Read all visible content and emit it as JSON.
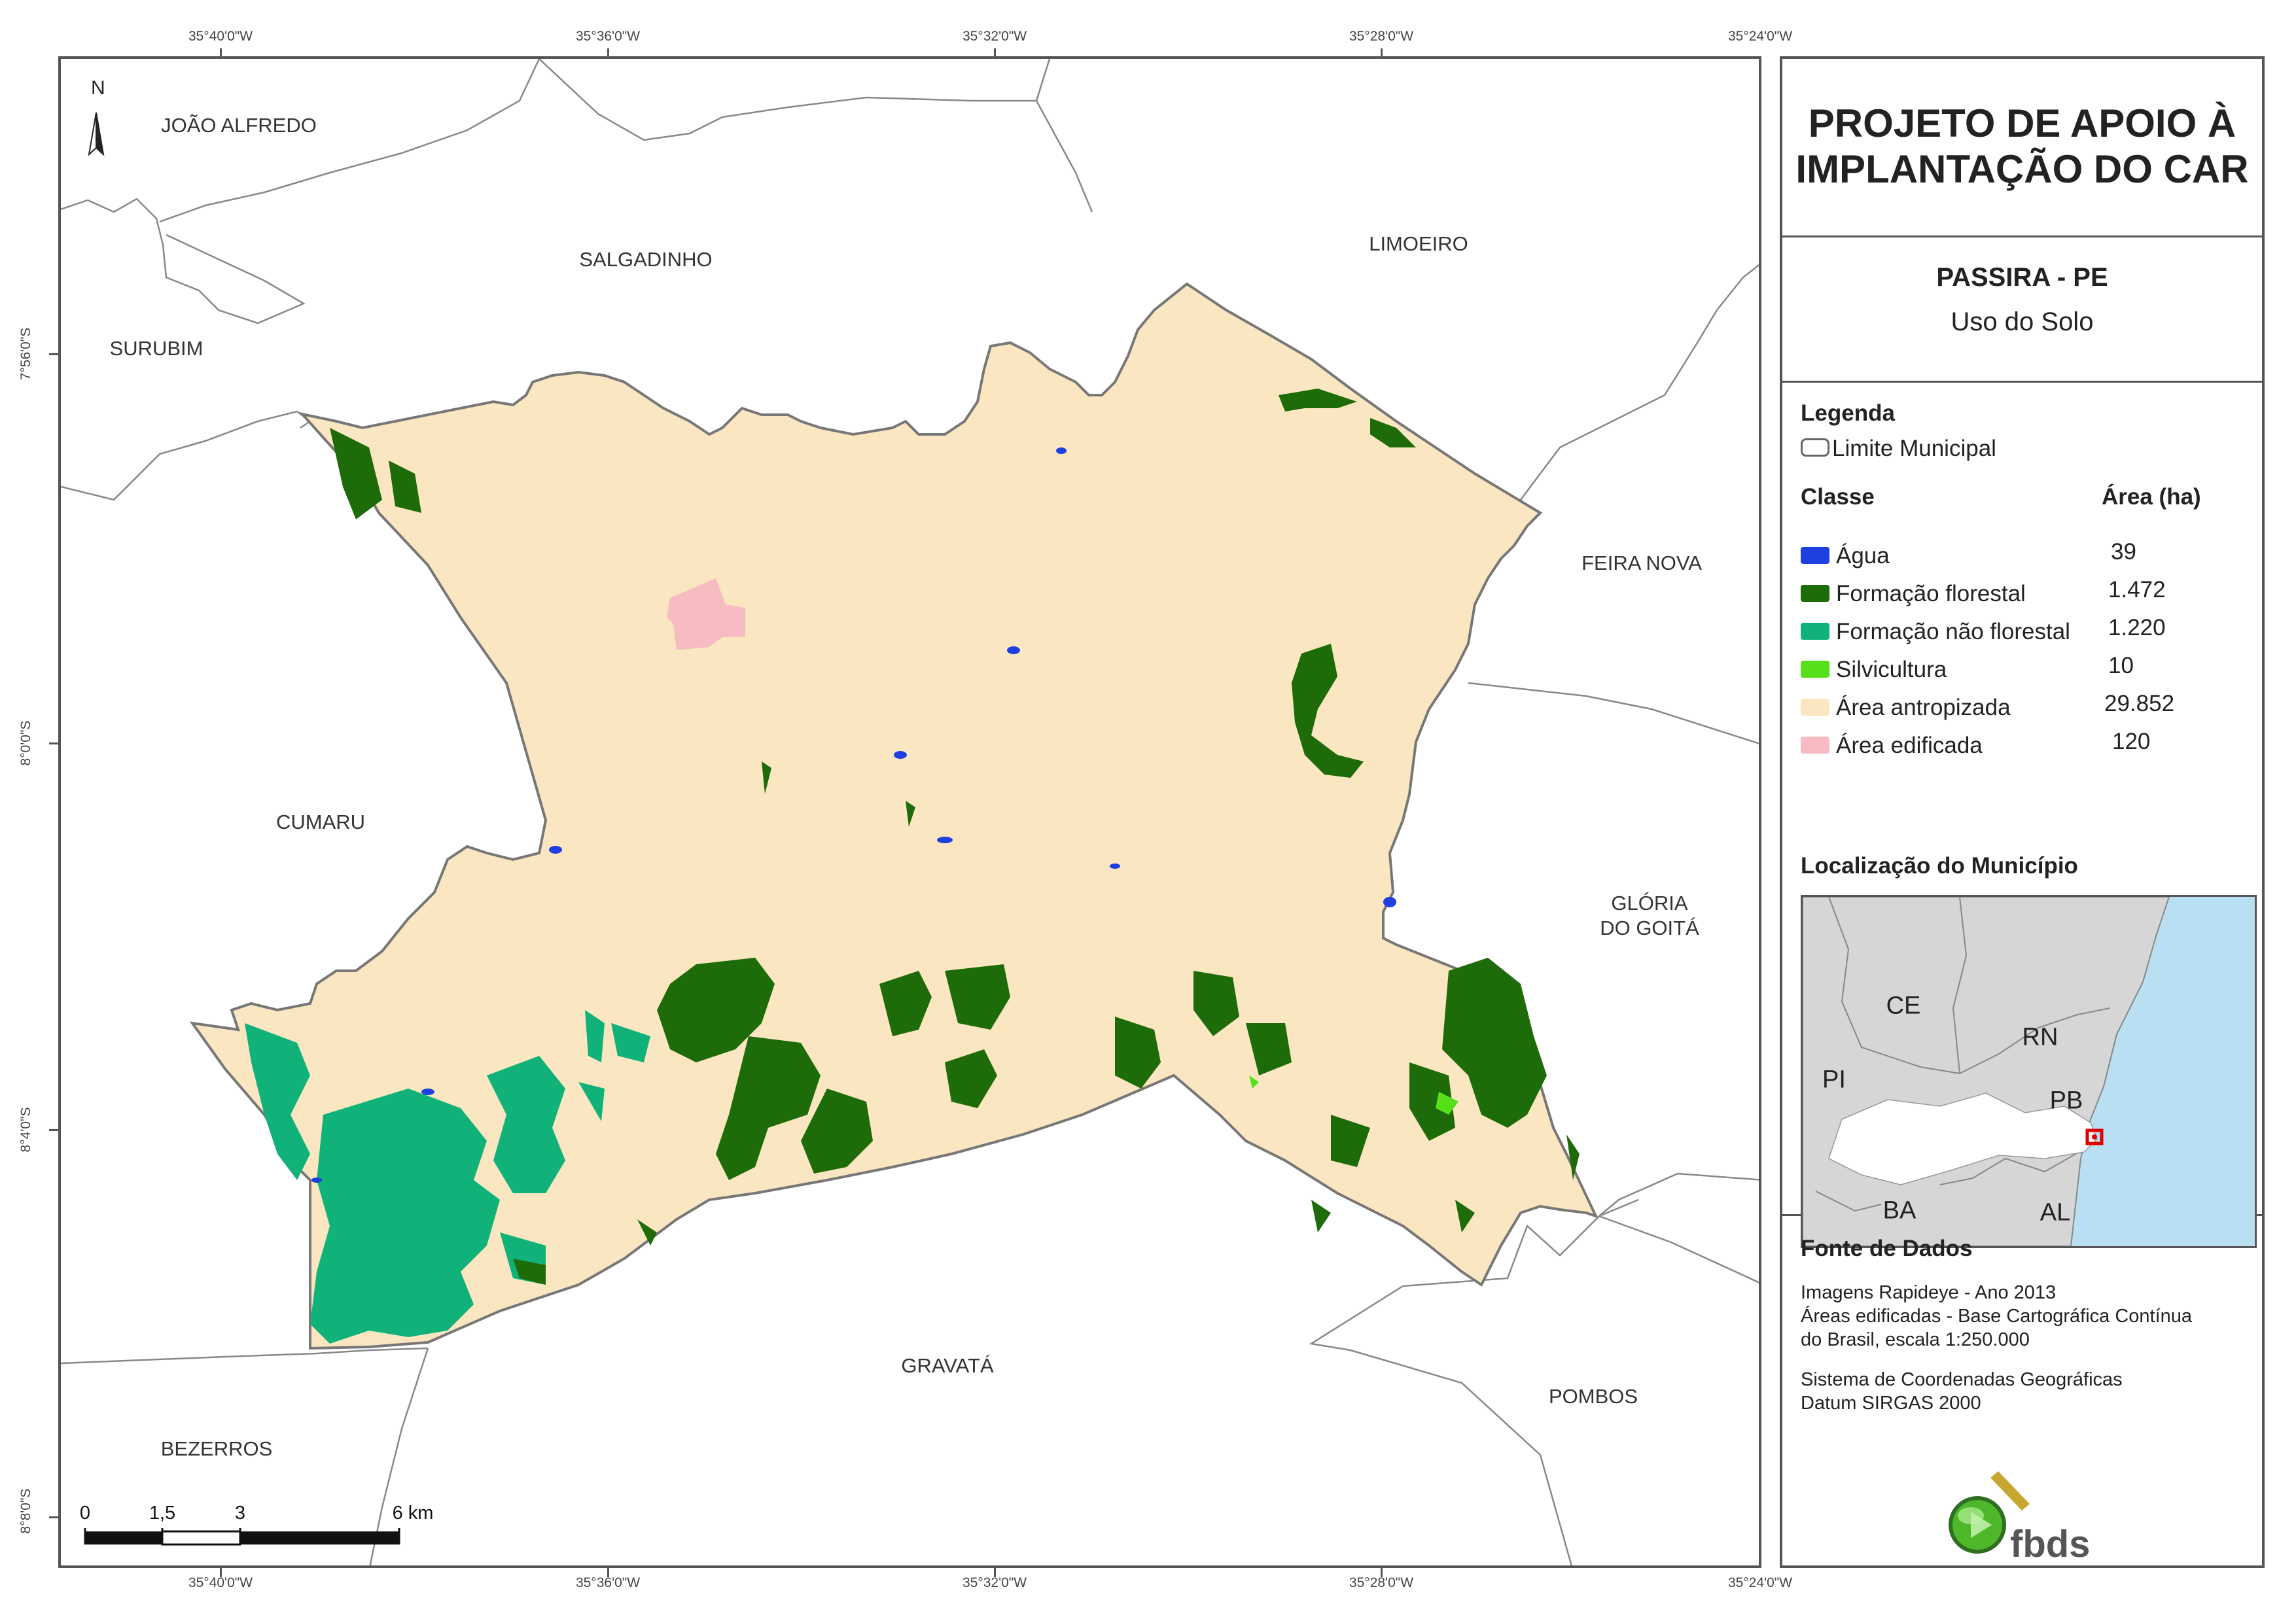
{
  "map": {
    "coords_top": [
      "35°40'0\"W",
      "35°36'0\"W",
      "35°32'0\"W",
      "35°28'0\"W",
      "35°24'0\"W"
    ],
    "coords_bottom": [
      "35°40'0\"W",
      "35°36'0\"W",
      "35°32'0\"W",
      "35°28'0\"W",
      "35°24'0\"W"
    ],
    "coords_left": [
      "7°56'0\"S",
      "8°0'0\"S",
      "8°4'0\"S",
      "8°8'0\"S"
    ],
    "north_label": "N",
    "municipalities": {
      "joao_alfredo": "JOÃO ALFREDO",
      "salgadinho": "SALGADINHO",
      "limoeiro": "LIMOEIRO",
      "surubim": "SURUBIM",
      "feira_nova": "FEIRA NOVA",
      "cumaru": "CUMARU",
      "gloria_line1": "GLÓRIA",
      "gloria_line2": "DO GOITÁ",
      "gravata": "GRAVATÁ",
      "bezerros": "BEZERROS",
      "pombos": "POMBOS"
    },
    "scale_bar": {
      "labels": [
        "0",
        "1,5",
        "3",
        "6 km"
      ]
    }
  },
  "panel": {
    "title_line1": "PROJETO DE APOIO À",
    "title_line2": "IMPLANTAÇÃO DO CAR",
    "place": "PASSIRA - PE",
    "theme": "Uso do Solo",
    "legend_heading": "Legenda",
    "boundary_label": "Limite Municipal",
    "class_heading": "Classe",
    "area_heading": "Área (ha)",
    "classes": [
      {
        "label": "Água",
        "area": "39",
        "color": "#1f3fe0"
      },
      {
        "label": "Formação florestal",
        "area": "1.472",
        "color": "#1e6b0a"
      },
      {
        "label": "Formação não florestal",
        "area": "1.220",
        "color": "#10b27a"
      },
      {
        "label": "Silvicultura",
        "area": "10",
        "color": "#55e01a"
      },
      {
        "label": "Área antropizada",
        "area": "29.852",
        "color": "#fae6c0"
      },
      {
        "label": "Área edificada",
        "area": "120",
        "color": "#f7bcc1"
      }
    ],
    "location_heading": "Localização do Município",
    "inset_labels": {
      "ce": "CE",
      "rn": "RN",
      "pi": "PI",
      "pb": "PB",
      "ba": "BA",
      "al": "AL"
    },
    "source_heading": "Fonte de Dados",
    "sources": [
      "Imagens Rapideye - Ano 2013",
      "Áreas edificadas - Base Cartográfica Contínua",
      "do Brasil, escala 1:250.000",
      "Sistema de Coordenadas Geográficas",
      "Datum SIRGAS 2000"
    ],
    "logo_text": "fbds"
  },
  "colors": {
    "frame": "#555555",
    "ocean": "#b9dff2",
    "land_gray": "#d6d6d6",
    "pe_fill": "#ffffff",
    "highlight": "#e00000"
  }
}
